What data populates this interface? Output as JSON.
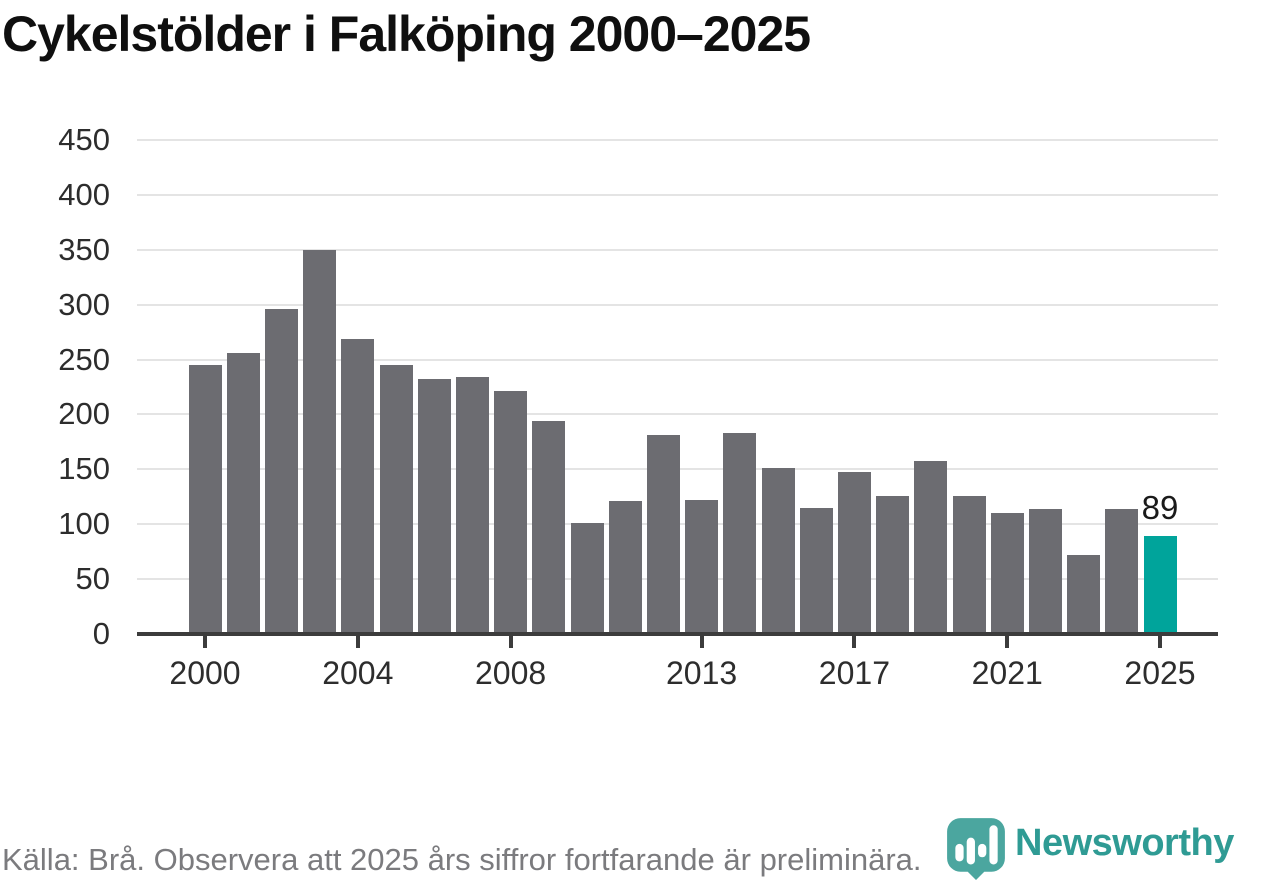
{
  "title": "Cykelstölder i Falköping 2000–2025",
  "source_note": "Källa: Brå. Observera att 2025 års siffror fortfarande är preliminära.",
  "logo": {
    "text": "Newsworthy",
    "icon": "newsworthy-pin-barchart-icon"
  },
  "colors": {
    "bar": "#6c6c71",
    "highlight_bar": "#00a49b",
    "axis": "#3c3c3c",
    "gridline": "#e4e4e4",
    "title_text": "#0f0f0f",
    "tick_text": "#2d2d2d",
    "value_label_text": "#1a1a1a",
    "source_text": "#7b7b7e",
    "logo_text": "#2f9b94",
    "logo_icon": "#4ba69f"
  },
  "chart_data": {
    "type": "bar",
    "title": "Cykelstölder i Falköping 2000–2025",
    "xlabel": "",
    "ylabel": "",
    "categories": [
      2000,
      2001,
      2002,
      2003,
      2004,
      2005,
      2006,
      2007,
      2008,
      2009,
      2010,
      2011,
      2012,
      2013,
      2014,
      2015,
      2016,
      2017,
      2018,
      2019,
      2020,
      2021,
      2022,
      2023,
      2024,
      2025
    ],
    "values": [
      245,
      256,
      296,
      350,
      269,
      245,
      232,
      234,
      221,
      194,
      101,
      121,
      181,
      122,
      183,
      151,
      115,
      148,
      126,
      158,
      126,
      110,
      114,
      72,
      114,
      89
    ],
    "highlight_category": 2025,
    "highlight_value_label": "89",
    "ylim": [
      0,
      450
    ],
    "yticks": [
      0,
      50,
      100,
      150,
      200,
      250,
      300,
      350,
      400,
      450
    ],
    "xticks": [
      2000,
      2004,
      2008,
      2013,
      2017,
      2021,
      2025
    ],
    "grid": "horizontal",
    "legend": "none"
  }
}
